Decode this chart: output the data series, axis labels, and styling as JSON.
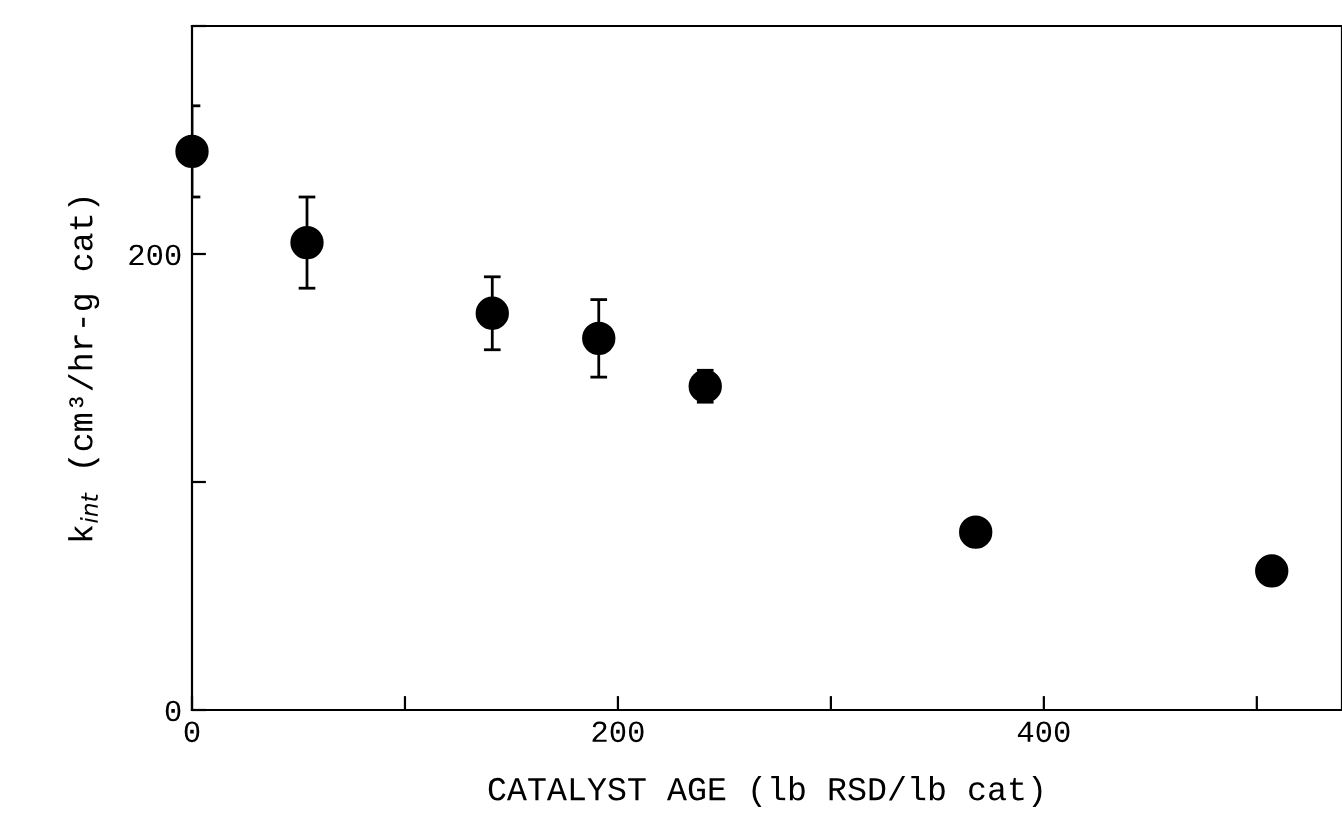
{
  "chart_data": {
    "type": "scatter",
    "xlabel": "CATALYST AGE (lb RSD/lb cat)",
    "ylabel": "k$_{int}$ (cm³/hr-g cat)",
    "x": [
      0,
      54,
      141,
      191,
      241,
      368,
      507
    ],
    "values": [
      245,
      205,
      174,
      163,
      142,
      78,
      61
    ],
    "errors": [
      20,
      20,
      16,
      17,
      7,
      null,
      null
    ],
    "color": "#000000",
    "marker": "circle",
    "xlim": [
      0,
      540
    ],
    "xticks": [
      0,
      {
        "value": 100,
        "label": null
      },
      200,
      {
        "value": 300,
        "label": null
      },
      400,
      {
        "value": 500,
        "label": null
      }
    ],
    "ylim": [
      0,
      300
    ],
    "yticks": [
      0,
      {
        "value": 100,
        "label": null
      },
      200,
      {
        "value": 300,
        "label": null
      }
    ],
    "grid": false,
    "legend": false
  }
}
